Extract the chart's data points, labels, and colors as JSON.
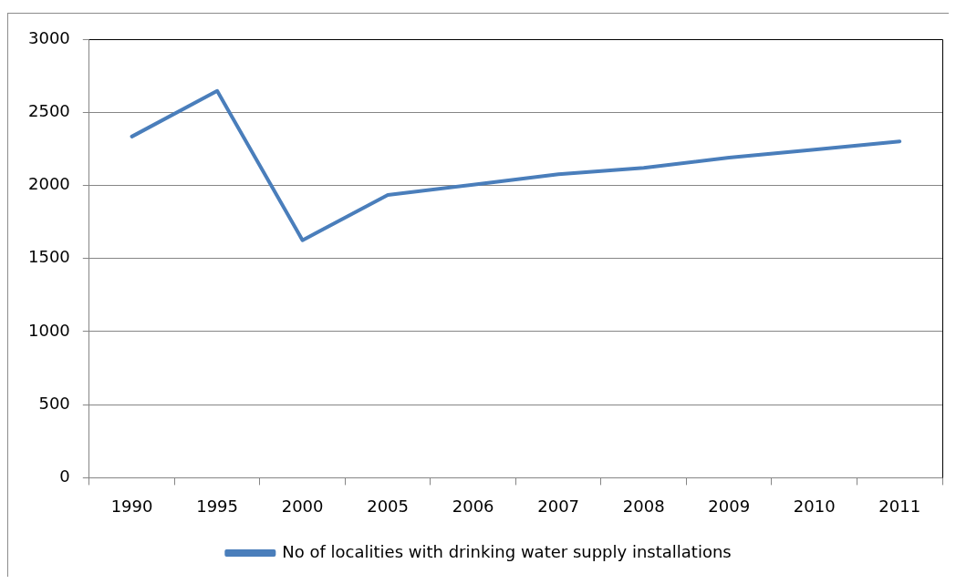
{
  "chart_data": {
    "type": "line",
    "categories": [
      "1990",
      "1995",
      "2000",
      "2005",
      "2006",
      "2007",
      "2008",
      "2009",
      "2010",
      "2011"
    ],
    "series": [
      {
        "name": "No of localities with drinking water supply installations",
        "color": "#4a7ebb",
        "values": [
          2334,
          2646,
          1625,
          1934,
          2005,
          2076,
          2120,
          2190,
          2244,
          2301
        ]
      }
    ],
    "ylim": [
      0,
      3000
    ],
    "yticks": [
      0,
      500,
      1000,
      1500,
      2000,
      2500,
      3000
    ],
    "grid": "y",
    "legend": "bottom",
    "marker": "none",
    "line_style": "solid"
  }
}
